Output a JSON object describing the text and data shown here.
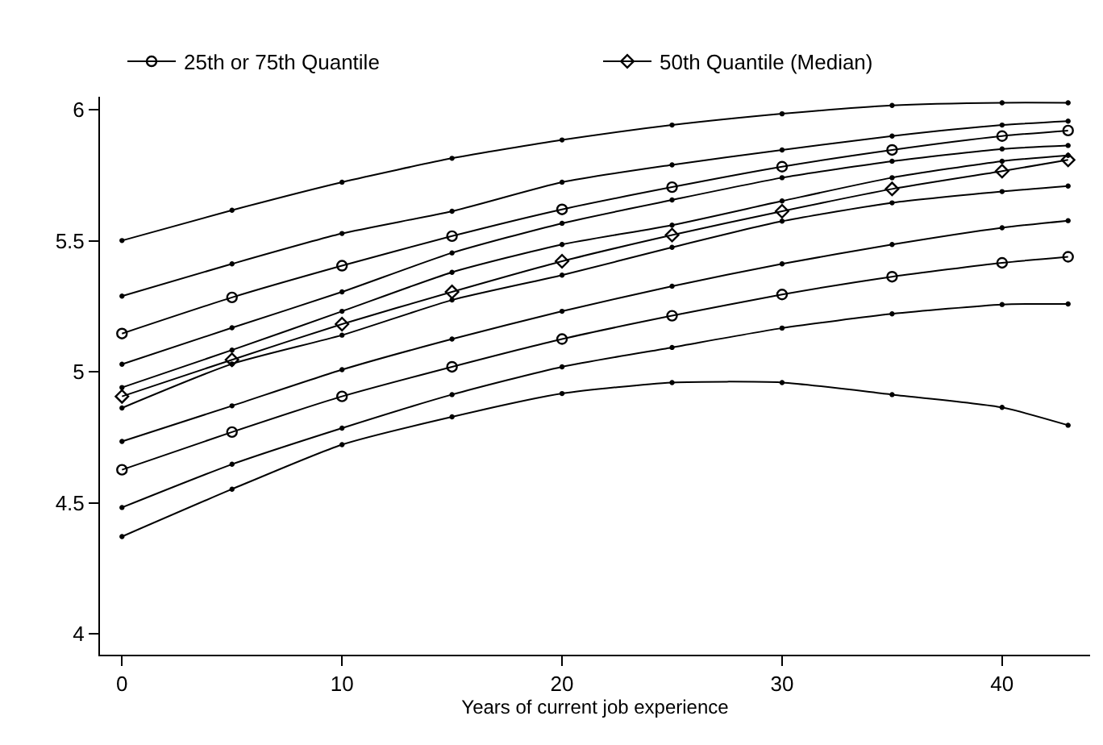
{
  "chart_data": {
    "type": "line",
    "xlabel": "Years of current job experience",
    "x": [
      0,
      5,
      10,
      15,
      20,
      25,
      30,
      35,
      40,
      43
    ],
    "xlim": [
      -1,
      44
    ],
    "xticks": [
      0,
      10,
      20,
      30,
      40
    ],
    "ylim": [
      3.92,
      6.05
    ],
    "yticks": [
      4,
      4.5,
      5,
      5.5,
      6
    ],
    "grid": false,
    "legend": "top",
    "marker": "circle",
    "series": [
      {
        "color": "#000000",
        "values": [
          5.501,
          5.617,
          5.724,
          5.815,
          5.885,
          5.942,
          5.985,
          6.017,
          6.027,
          6.027
        ]
      },
      {
        "color": "#000000",
        "values": [
          5.289,
          5.412,
          5.528,
          5.613,
          5.724,
          5.79,
          5.847,
          5.9,
          5.942,
          5.957
        ]
      },
      {
        "name": "25th or 75th Quantile",
        "color": "#000000",
        "marker": "circle",
        "values": [
          5.146,
          5.284,
          5.405,
          5.518,
          5.62,
          5.705,
          5.783,
          5.847,
          5.9,
          5.921
        ]
      },
      {
        "color": "#000000",
        "values": [
          5.029,
          5.168,
          5.305,
          5.454,
          5.567,
          5.656,
          5.741,
          5.804,
          5.851,
          5.864
        ]
      },
      {
        "color": "#000000",
        "values": [
          4.94,
          5.083,
          5.231,
          5.38,
          5.486,
          5.56,
          5.652,
          5.741,
          5.804,
          5.826
        ]
      },
      {
        "name": "50th Quantile (Median)",
        "color": "#000000",
        "marker": "diamond",
        "values": [
          4.906,
          5.046,
          5.182,
          5.305,
          5.422,
          5.522,
          5.613,
          5.698,
          5.766,
          5.809
        ]
      },
      {
        "color": "#000000",
        "values": [
          4.862,
          5.03,
          5.14,
          5.274,
          5.369,
          5.475,
          5.575,
          5.645,
          5.688,
          5.709
        ]
      },
      {
        "color": "#000000",
        "values": [
          4.734,
          4.87,
          5.008,
          5.125,
          5.231,
          5.327,
          5.412,
          5.486,
          5.55,
          5.577
        ]
      },
      {
        "color": "#000000",
        "marker": "circle",
        "values": [
          4.626,
          4.77,
          4.906,
          5.019,
          5.125,
          5.214,
          5.295,
          5.363,
          5.416,
          5.439
        ]
      },
      {
        "color": "#000000",
        "values": [
          4.482,
          4.647,
          4.785,
          4.913,
          5.019,
          5.093,
          5.167,
          5.221,
          5.257,
          5.259
        ]
      },
      {
        "color": "#000000",
        "values": [
          4.371,
          4.552,
          4.722,
          4.828,
          4.917,
          4.959,
          4.959,
          4.913,
          4.864,
          4.796
        ]
      }
    ]
  }
}
